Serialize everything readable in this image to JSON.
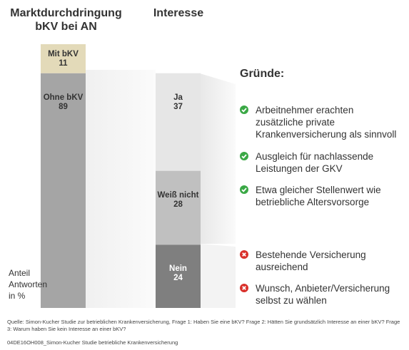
{
  "chart_data": [
    {
      "type": "stacked-bar",
      "title": "Marktdurchdringung bKV bei AN",
      "y_label": "Anteil Antworten in %",
      "series": [
        {
          "name": "Ohne bKV",
          "color": "#a5a5a5",
          "values": [
            89
          ]
        },
        {
          "name": "Mit bKV",
          "color": "#e3dab9",
          "values": [
            11
          ]
        }
      ]
    },
    {
      "type": "stacked-bar",
      "title": "Interesse",
      "series": [
        {
          "name": "Nein",
          "color": "#7f7f7f",
          "values": [
            24
          ]
        },
        {
          "name": "Weiß nicht",
          "color": "#c0c0c0",
          "values": [
            28
          ]
        },
        {
          "name": "Ja",
          "color": "#e6e6e6",
          "values": [
            37
          ]
        }
      ]
    }
  ],
  "reasons": {
    "title": "Gründe:",
    "positive": [
      "Arbeitnehmer erachten zusätzliche private Krankenversicherung als sinnvoll",
      "Ausgleich für nachlassende Leistungen der GKV",
      "Etwa gleicher Stellenwert wie betriebliche Altersvorsorge"
    ],
    "negative": [
      "Bestehende Versicherung ausreichend",
      "Wunsch, Anbieter/Versicherung selbst zu wählen"
    ]
  },
  "source": "Quelle: Simon-Kucher Studie zur betrieblichen Krankenversicherung, Frage 1: Haben Sie eine bKV? Frage 2: Hätten Sie grundsätzlich Interesse an einer bKV? Frage 3: Warum haben Sie kein Interesse an einer bKV?",
  "code": "04DE16OH008_Simon-Kucher Studie betriebliche Krankenversicherung"
}
